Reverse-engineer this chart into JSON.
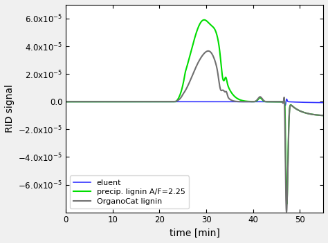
{
  "xlabel": "time [min]",
  "ylabel": "RID signal",
  "xlim": [
    0,
    55
  ],
  "ylim": [
    -8e-05,
    7e-05
  ],
  "yticks": [
    -6e-05,
    -4e-05,
    -2e-05,
    0,
    2e-05,
    4e-05,
    6e-05
  ],
  "xticks": [
    0,
    10,
    20,
    30,
    40,
    50
  ],
  "colors": {
    "eluent": "#3333ff",
    "precip": "#00dd00",
    "organocat": "#707070"
  },
  "legend": [
    "eluent",
    "precip. lignin A/F=2.25",
    "OrganoCat lignin"
  ],
  "figsize": [
    4.74,
    3.52
  ],
  "dpi": 100
}
